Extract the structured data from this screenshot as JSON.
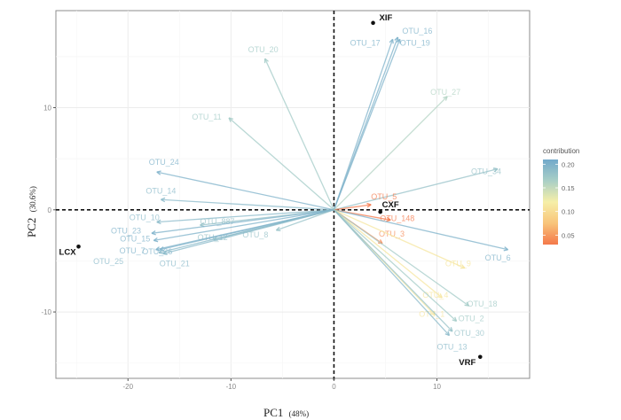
{
  "chart_data": {
    "type": "scatter",
    "subtype": "pca-biplot",
    "title": "",
    "xlabel": "PC1",
    "xlabel_pct": "(48%)",
    "ylabel": "PC2",
    "ylabel_pct": "(30.6%)",
    "xlim": [
      -27,
      19
    ],
    "ylim": [
      -16.5,
      19.5
    ],
    "xticks": [
      -20,
      -10,
      0,
      10
    ],
    "yticks": [
      -10,
      0,
      10
    ],
    "xtick_labels": [
      "-20",
      "-10",
      "0",
      "10"
    ],
    "ytick_labels": [
      "-10",
      "0",
      "10"
    ],
    "grid": true,
    "reference_lines": {
      "x": 0,
      "y": 0,
      "style": "dashed"
    },
    "individuals": [
      {
        "label": "XIF",
        "x": 3.8,
        "y": 18.3
      },
      {
        "label": "CXF",
        "x": 4.5,
        "y": -0.2
      },
      {
        "label": "LCX",
        "x": -24.8,
        "y": -3.6
      },
      {
        "label": "VRF",
        "x": 14.2,
        "y": -14.4
      }
    ],
    "variables": [
      {
        "label": "OTU_20",
        "x": -6.7,
        "y": 14.8,
        "contribution": 0.17
      },
      {
        "label": "OTU_11",
        "x": -10.2,
        "y": 9.0,
        "contribution": 0.17
      },
      {
        "label": "OTU_24",
        "x": -17.2,
        "y": 3.7,
        "contribution": 0.2
      },
      {
        "label": "OTU_14",
        "x": -16.8,
        "y": 1.0,
        "contribution": 0.19
      },
      {
        "label": "OTU_10",
        "x": -17.2,
        "y": -1.2,
        "contribution": 0.19
      },
      {
        "label": "OTU_887",
        "x": -13.0,
        "y": -1.5,
        "contribution": 0.18
      },
      {
        "label": "OTU_23",
        "x": -17.7,
        "y": -2.3,
        "contribution": 0.2
      },
      {
        "label": "OTU_15",
        "x": -17.5,
        "y": -3.0,
        "contribution": 0.2
      },
      {
        "label": "OTU_12",
        "x": -11.7,
        "y": -2.9,
        "contribution": 0.18
      },
      {
        "label": "OTU_8",
        "x": -5.6,
        "y": -2.0,
        "contribution": 0.18
      },
      {
        "label": "OTU_7",
        "x": -17.3,
        "y": -3.9,
        "contribution": 0.2
      },
      {
        "label": "OTU_26",
        "x": -16.9,
        "y": -3.9,
        "contribution": 0.2
      },
      {
        "label": "OTU_25",
        "x": -17.0,
        "y": -4.2,
        "contribution": 0.19
      },
      {
        "label": "OTU_21",
        "x": -16.6,
        "y": -4.3,
        "contribution": 0.19
      },
      {
        "label": "OTU_16",
        "x": 6.2,
        "y": 16.9,
        "contribution": 0.2
      },
      {
        "label": "OTU_17",
        "x": 5.7,
        "y": 16.7,
        "contribution": 0.2
      },
      {
        "label": "OTU_19",
        "x": 6.4,
        "y": 16.7,
        "contribution": 0.2
      },
      {
        "label": "OTU_27",
        "x": 11.0,
        "y": 11.1,
        "contribution": 0.16
      },
      {
        "label": "OTU_34",
        "x": 15.9,
        "y": 4.0,
        "contribution": 0.18
      },
      {
        "label": "OTU_5",
        "x": 3.6,
        "y": 0.5,
        "contribution": 0.02
      },
      {
        "label": "OTU_148",
        "x": 5.5,
        "y": -1.0,
        "contribution": 0.03
      },
      {
        "label": "OTU_3",
        "x": 4.7,
        "y": -3.3,
        "contribution": 0.04
      },
      {
        "label": "OTU_6",
        "x": 16.9,
        "y": -3.9,
        "contribution": 0.2
      },
      {
        "label": "OTU_9",
        "x": 12.7,
        "y": -5.7,
        "contribution": 0.11
      },
      {
        "label": "OTU_4",
        "x": 10.5,
        "y": -8.6,
        "contribution": 0.11
      },
      {
        "label": "OTU_18",
        "x": 13.1,
        "y": -9.4,
        "contribution": 0.17
      },
      {
        "label": "OTU_1",
        "x": 9.8,
        "y": -10.3,
        "contribution": 0.11
      },
      {
        "label": "OTU_2",
        "x": 11.9,
        "y": -10.9,
        "contribution": 0.17
      },
      {
        "label": "OTU_30",
        "x": 11.5,
        "y": -11.9,
        "contribution": 0.18
      },
      {
        "label": "OTU_13",
        "x": 11.2,
        "y": -12.3,
        "contribution": 0.19
      }
    ],
    "color_legend": {
      "title": "contribution",
      "position": "right",
      "range": [
        0.03,
        0.21
      ],
      "ticks": [
        0.2,
        0.15,
        0.1,
        0.05
      ],
      "tick_labels": [
        "0.20",
        "0.15",
        "0.10",
        "0.05"
      ],
      "colors_low_to_high": [
        "#f4784a",
        "#f8c47a",
        "#f6efa8",
        "#a9cfc6",
        "#72a9cb"
      ]
    }
  }
}
